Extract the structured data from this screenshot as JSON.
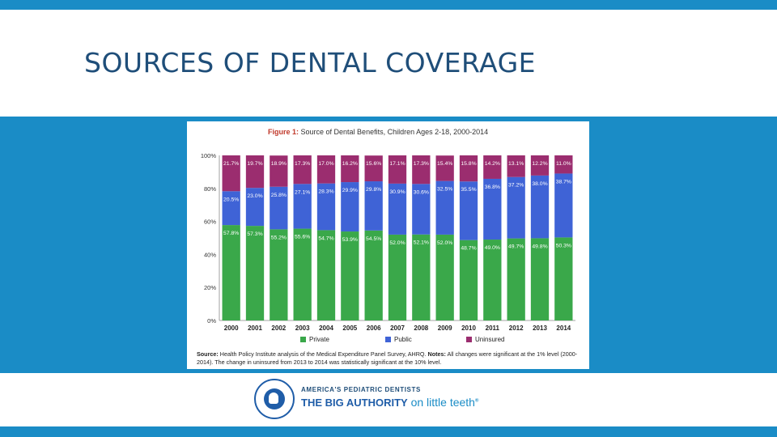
{
  "slide": {
    "title": "SOURCES OF DENTAL COVERAGE"
  },
  "colors": {
    "accent": "#1a8cc6",
    "title": "#1f4e79",
    "private": "#3aa84a",
    "public": "#3f63d6",
    "uninsured": "#9b2d6f"
  },
  "chart_data": {
    "type": "bar",
    "stacked": true,
    "title_prefix": "Figure 1:",
    "title_rest": " Source of Dental Benefits, Children Ages 2-18, 2000-2014",
    "categories": [
      "2000",
      "2001",
      "2002",
      "2003",
      "2004",
      "2005",
      "2006",
      "2007",
      "2008",
      "2009",
      "2010",
      "2011",
      "2012",
      "2013",
      "2014"
    ],
    "series": [
      {
        "name": "Private",
        "values": [
          57.8,
          57.3,
          55.2,
          55.6,
          54.7,
          53.9,
          54.5,
          52.0,
          52.1,
          52.0,
          48.7,
          49.0,
          49.7,
          49.8,
          50.3
        ],
        "labels": [
          "57.8%",
          "57.3%",
          "55.2%",
          "55.6%",
          "54.7%",
          "53.9%",
          "54.5%",
          "52.0%",
          "52.1%",
          "52.0%",
          "48.7%",
          "49.0%",
          "49.7%",
          "49.8%",
          "50.3%"
        ]
      },
      {
        "name": "Public",
        "values": [
          20.5,
          23.0,
          25.8,
          27.1,
          28.3,
          29.9,
          29.8,
          30.9,
          30.6,
          32.5,
          35.5,
          36.8,
          37.2,
          38.0,
          38.7
        ],
        "labels": [
          "20.5%",
          "23.0%",
          "25.8%",
          "27.1%",
          "28.3%",
          "29.9%",
          "29.8%",
          "30.9%",
          "30.6%",
          "32.5%",
          "35.5%",
          "36.8%",
          "37.2%",
          "38.0%",
          "38.7%"
        ]
      },
      {
        "name": "Uninsured",
        "values": [
          21.7,
          19.7,
          18.9,
          17.3,
          17.0,
          16.2,
          15.6,
          17.1,
          17.3,
          15.4,
          15.8,
          14.2,
          13.1,
          12.2,
          11.0
        ],
        "labels": [
          "21.7%",
          "19.7%",
          "18.9%",
          "17.3%",
          "17.0%",
          "16.2%",
          "15.6%",
          "17.1%",
          "17.3%",
          "15.4%",
          "15.8%",
          "14.2%",
          "13.1%",
          "12.2%",
          "11.0%"
        ]
      }
    ],
    "y_ticks": [
      "100%",
      "80%",
      "60%",
      "40%",
      "20%",
      "0%"
    ],
    "ylim": [
      0,
      100
    ],
    "legend": [
      "Private",
      "Public",
      "Uninsured"
    ],
    "legend_position": "bottom-center"
  },
  "source": {
    "label": "Source:",
    "text1": " Health Policy Institute analysis of the Medical Expenditure Panel Survey, AHRQ. ",
    "notes_label": "Notes:",
    "text2": " All changes were significant at the 1% level (2000-2014). The change in uninsured from 2013 to 2014 was statistically significant at the 10% level."
  },
  "logo": {
    "line1": "AMERICA'S PEDIATRIC DENTISTS",
    "bold": "THE BIG AUTHORITY",
    "tagline": " on little teeth",
    "mark": "®"
  }
}
